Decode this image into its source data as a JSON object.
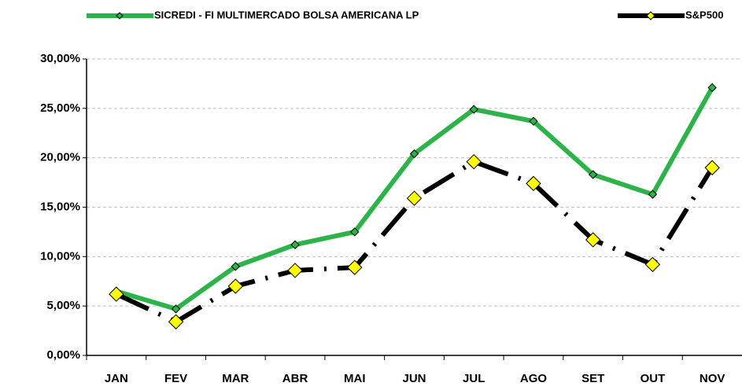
{
  "chart_data": {
    "type": "line",
    "categories": [
      "JAN",
      "FEV",
      "MAR",
      "ABR",
      "MAI",
      "JUN",
      "JUL",
      "AGO",
      "SET",
      "OUT",
      "NOV"
    ],
    "series": [
      {
        "name": "SICREDI - FI MULTIMERCADO BOLSA AMERICANA LP",
        "color": "#2db34a",
        "marker_color": "#2db34a",
        "values": [
          6.5,
          4.7,
          9.0,
          11.2,
          12.5,
          20.4,
          24.9,
          23.7,
          18.3,
          16.3,
          27.1
        ]
      },
      {
        "name": "S&P500",
        "color": "#000000",
        "marker_color": "#ffff00",
        "values": [
          6.2,
          3.4,
          7.0,
          8.6,
          8.9,
          15.9,
          19.6,
          17.4,
          11.7,
          9.2,
          19.0
        ]
      }
    ],
    "ylim": [
      0,
      30
    ],
    "yticks": [
      {
        "value": 0,
        "label": "0,00%"
      },
      {
        "value": 5,
        "label": "5,00%"
      },
      {
        "value": 10,
        "label": "10,00%"
      },
      {
        "value": 15,
        "label": "15,00%"
      },
      {
        "value": 20,
        "label": "20,00%"
      },
      {
        "value": 25,
        "label": "25,00%"
      },
      {
        "value": 30,
        "label": "30,00%"
      }
    ],
    "grid": true
  }
}
